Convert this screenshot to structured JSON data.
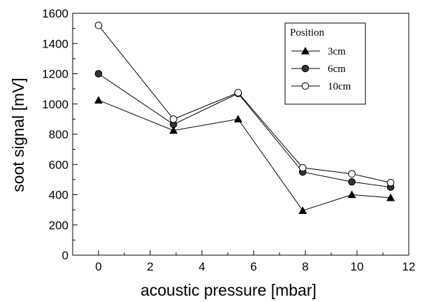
{
  "chart_data": {
    "type": "line",
    "xlabel": "acoustic pressure [mbar]",
    "ylabel": "soot signal [mV]",
    "xlim": [
      -1,
      12
    ],
    "ylim": [
      0,
      1600
    ],
    "xticks": [
      0,
      2,
      4,
      6,
      8,
      10,
      12
    ],
    "yticks": [
      0,
      200,
      400,
      600,
      800,
      1000,
      1200,
      1400,
      1600
    ],
    "grid": false,
    "legend": {
      "title": "Position",
      "placement": "top-right"
    },
    "series": [
      {
        "name": "3cm",
        "marker": "triangle-filled",
        "x": [
          0,
          2.9,
          5.4,
          7.9,
          9.8,
          11.3
        ],
        "y": [
          1025,
          825,
          900,
          295,
          400,
          380
        ]
      },
      {
        "name": "6cm",
        "marker": "circle-filled",
        "x": [
          0,
          2.9,
          5.4,
          7.9,
          9.8,
          11.3
        ],
        "y": [
          1200,
          865,
          1070,
          550,
          485,
          450
        ]
      },
      {
        "name": "10cm",
        "marker": "circle-open",
        "x": [
          0,
          2.9,
          5.4,
          7.9,
          9.8,
          11.3
        ],
        "y": [
          1520,
          900,
          1075,
          578,
          538,
          480
        ]
      }
    ]
  }
}
